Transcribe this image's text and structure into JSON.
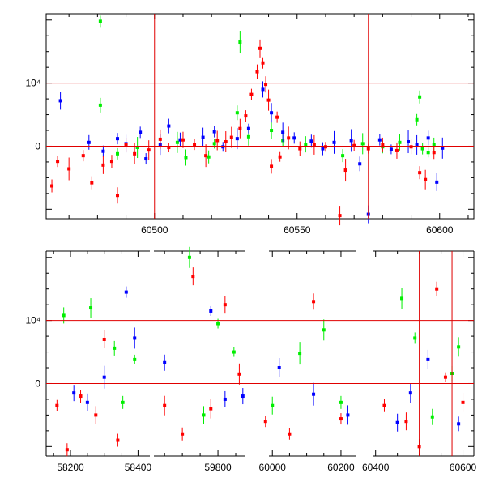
{
  "chart_data": [
    {
      "type": "scatter",
      "title": "",
      "xlabel": "",
      "ylabel": "",
      "xlim": [
        60462,
        60612
      ],
      "ylim": [
        -11500,
        21000
      ],
      "x_ticks": [
        60500,
        60550,
        60600
      ],
      "y_ticks": [
        {
          "value": 0,
          "label": "0"
        },
        {
          "value": 10000,
          "label": "10⁴"
        }
      ],
      "hlines": [
        0,
        10000
      ],
      "vlines": [
        60500,
        60575
      ],
      "series": [
        {
          "color": "#00ee00",
          "points": [
            [
              60481,
              19800
            ],
            [
              60481,
              6500
            ],
            [
              60487,
              -1200
            ],
            [
              60494,
              -200
            ],
            [
              60508,
              600
            ],
            [
              60511,
              -1800
            ],
            [
              60519,
              -1700
            ],
            [
              60521,
              400
            ],
            [
              60529,
              5300
            ],
            [
              60530,
              16500
            ],
            [
              60533,
              1500
            ],
            [
              60541,
              2500
            ],
            [
              60545,
              900
            ],
            [
              60553,
              300
            ],
            [
              60566,
              -1500
            ],
            [
              60573,
              400
            ],
            [
              60580,
              -100
            ],
            [
              60586,
              600
            ],
            [
              60592,
              4200
            ],
            [
              60593,
              7800
            ],
            [
              60594,
              -400
            ],
            [
              60596,
              -1000
            ],
            [
              60598,
              200
            ]
          ]
        },
        {
          "color": "#0000ff",
          "points": [
            [
              60467,
              7200
            ],
            [
              60477,
              600
            ],
            [
              60482,
              -800
            ],
            [
              60487,
              1200
            ],
            [
              60490,
              400
            ],
            [
              60495,
              2200
            ],
            [
              60497,
              -2000
            ],
            [
              60502,
              300
            ],
            [
              60505,
              3200
            ],
            [
              60509,
              1000
            ],
            [
              60517,
              1400
            ],
            [
              60521,
              2300
            ],
            [
              60524,
              -100
            ],
            [
              60529,
              1200
            ],
            [
              60533,
              2800
            ],
            [
              60538,
              9000
            ],
            [
              60541,
              5300
            ],
            [
              60545,
              2200
            ],
            [
              60549,
              1300
            ],
            [
              60555,
              800
            ],
            [
              60559,
              -400
            ],
            [
              60563,
              600
            ],
            [
              60569,
              900
            ],
            [
              60572,
              -2800
            ],
            [
              60575,
              -10800
            ],
            [
              60579,
              1000
            ],
            [
              60583,
              -500
            ],
            [
              60589,
              700
            ],
            [
              60592,
              200
            ],
            [
              60596,
              1300
            ],
            [
              60599,
              -5700
            ],
            [
              60601,
              -300
            ]
          ]
        },
        {
          "color": "#ff0000",
          "points": [
            [
              60464,
              -6300
            ],
            [
              60466,
              -2400
            ],
            [
              60470,
              -3600
            ],
            [
              60475,
              -1500
            ],
            [
              60478,
              -5800
            ],
            [
              60482,
              -3000
            ],
            [
              60485,
              -2400
            ],
            [
              60487,
              -7800
            ],
            [
              60490,
              200
            ],
            [
              60493,
              -1200
            ],
            [
              60498,
              -600
            ],
            [
              60502,
              1100
            ],
            [
              60505,
              -200
            ],
            [
              60510,
              1000
            ],
            [
              60514,
              300
            ],
            [
              60518,
              -1500
            ],
            [
              60522,
              900
            ],
            [
              60525,
              700
            ],
            [
              60527,
              1400
            ],
            [
              60530,
              2800
            ],
            [
              60532,
              4800
            ],
            [
              60534,
              8200
            ],
            [
              60536,
              11800
            ],
            [
              60537,
              15500
            ],
            [
              60538,
              13200
            ],
            [
              60539,
              9800
            ],
            [
              60540,
              7300
            ],
            [
              60541,
              -3200
            ],
            [
              60543,
              4600
            ],
            [
              60544,
              -1700
            ],
            [
              60547,
              1300
            ],
            [
              60551,
              -400
            ],
            [
              60556,
              200
            ],
            [
              60560,
              -100
            ],
            [
              60565,
              -11000
            ],
            [
              60567,
              -3800
            ],
            [
              60570,
              100
            ],
            [
              60575,
              -400
            ],
            [
              60580,
              200
            ],
            [
              60585,
              -700
            ],
            [
              60590,
              -100
            ],
            [
              60593,
              -4200
            ],
            [
              60595,
              -5300
            ],
            [
              60598,
              -1000
            ]
          ]
        }
      ]
    },
    {
      "type": "scatter",
      "title": "",
      "xlabel": "",
      "ylabel": "",
      "broken_x_axis": true,
      "xlim": [
        58128,
        60625
      ],
      "ylim": [
        -11500,
        21000
      ],
      "x_ticks": [
        58200,
        58400,
        59800,
        60000,
        60200,
        60400,
        60600
      ],
      "y_ticks": [
        {
          "value": 0,
          "label": "0"
        },
        {
          "value": 10000,
          "label": "10⁴"
        }
      ],
      "hlines": [
        0,
        10000
      ],
      "vlines": [
        60500,
        60575
      ],
      "series": [
        {
          "color": "#00ee00",
          "points": [
            [
              58180,
              10800
            ],
            [
              58260,
              12000
            ],
            [
              58330,
              5600
            ],
            [
              58355,
              -3000
            ],
            [
              58390,
              3800
            ],
            [
              59720,
              20000
            ],
            [
              59760,
              -5000
            ],
            [
              59800,
              9500
            ],
            [
              59845,
              5000
            ],
            [
              60000,
              -3500
            ],
            [
              60080,
              4800
            ],
            [
              60150,
              8500
            ],
            [
              60200,
              -3000
            ],
            [
              60460,
              13500
            ],
            [
              60490,
              7200
            ],
            [
              60530,
              -5300
            ],
            [
              60575,
              1600
            ],
            [
              60590,
              5800
            ]
          ]
        },
        {
          "color": "#0000ff",
          "points": [
            [
              58210,
              -1500
            ],
            [
              58250,
              -3000
            ],
            [
              58300,
              1000
            ],
            [
              58365,
              14500
            ],
            [
              58390,
              7200
            ],
            [
              59650,
              3300
            ],
            [
              59780,
              11500
            ],
            [
              59820,
              -2500
            ],
            [
              59870,
              -2000
            ],
            [
              60020,
              2500
            ],
            [
              60120,
              -1700
            ],
            [
              60220,
              -5000
            ],
            [
              60450,
              -6200
            ],
            [
              60480,
              -1500
            ],
            [
              60520,
              3800
            ],
            [
              60590,
              -6400
            ]
          ]
        },
        {
          "color": "#ff0000",
          "points": [
            [
              58160,
              -3500
            ],
            [
              58190,
              -10500
            ],
            [
              58230,
              -2000
            ],
            [
              58275,
              -5000
            ],
            [
              58300,
              7000
            ],
            [
              58340,
              -9000
            ],
            [
              59650,
              -3500
            ],
            [
              59700,
              -8000
            ],
            [
              59730,
              17000
            ],
            [
              59780,
              -4000
            ],
            [
              59820,
              12500
            ],
            [
              59860,
              1500
            ],
            [
              59980,
              -6000
            ],
            [
              60050,
              -8000
            ],
            [
              60120,
              13000
            ],
            [
              60200,
              -5600
            ],
            [
              60420,
              -3500
            ],
            [
              60470,
              -6000
            ],
            [
              60500,
              -10000
            ],
            [
              60540,
              15000
            ],
            [
              60560,
              1000
            ],
            [
              60600,
              -3000
            ]
          ]
        }
      ]
    }
  ]
}
